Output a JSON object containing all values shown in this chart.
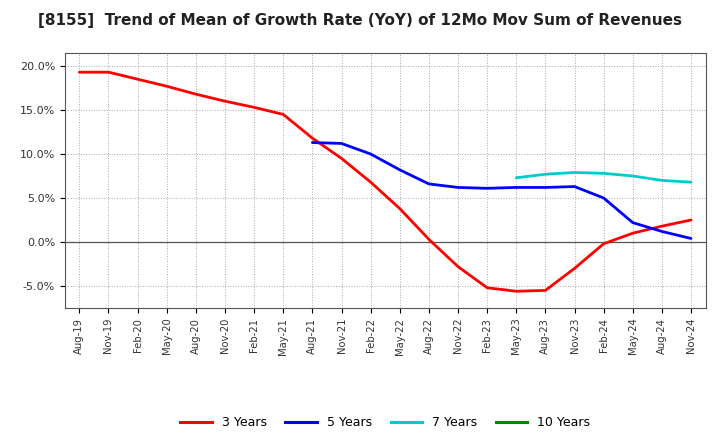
{
  "title": "[8155]  Trend of Mean of Growth Rate (YoY) of 12Mo Mov Sum of Revenues",
  "title_fontsize": 11,
  "ylim": [
    -0.075,
    0.215
  ],
  "yticks": [
    -0.05,
    0.0,
    0.05,
    0.1,
    0.15,
    0.2
  ],
  "ytick_labels": [
    "-5.0%",
    "0.0%",
    "5.0%",
    "10.0%",
    "15.0%",
    "20.0%"
  ],
  "x_labels": [
    "Aug-19",
    "Nov-19",
    "Feb-20",
    "May-20",
    "Aug-20",
    "Nov-20",
    "Feb-21",
    "May-21",
    "Aug-21",
    "Nov-21",
    "Feb-22",
    "May-22",
    "Aug-22",
    "Nov-22",
    "Feb-23",
    "May-23",
    "Aug-23",
    "Nov-23",
    "Feb-24",
    "May-24",
    "Aug-24",
    "Nov-24"
  ],
  "legend_labels": [
    "3 Years",
    "5 Years",
    "7 Years",
    "10 Years"
  ],
  "legend_colors": [
    "#ff0000",
    "#0000ff",
    "#00cccc",
    "#008800"
  ],
  "bg_color": "#ffffff",
  "grid_color": "#aaaaaa",
  "series_3yr": [
    0.193,
    0.193,
    0.185,
    0.177,
    0.168,
    0.16,
    0.153,
    0.145,
    0.118,
    0.095,
    0.068,
    0.038,
    0.003,
    -0.028,
    -0.052,
    -0.056,
    -0.055,
    -0.03,
    -0.002,
    0.01,
    0.018,
    0.025
  ],
  "series_5yr": [
    null,
    null,
    null,
    null,
    null,
    null,
    null,
    null,
    0.113,
    0.112,
    0.1,
    0.082,
    0.066,
    0.062,
    0.061,
    0.062,
    0.062,
    0.063,
    0.05,
    0.022,
    0.012,
    0.004
  ],
  "series_7yr": [
    null,
    null,
    null,
    null,
    null,
    null,
    null,
    null,
    null,
    null,
    null,
    null,
    null,
    null,
    null,
    0.073,
    0.077,
    0.079,
    0.078,
    0.075,
    0.07,
    0.068
  ],
  "series_10yr": [
    null,
    null,
    null,
    null,
    null,
    null,
    null,
    null,
    null,
    null,
    null,
    null,
    null,
    null,
    null,
    null,
    null,
    null,
    null,
    null,
    null,
    null
  ]
}
